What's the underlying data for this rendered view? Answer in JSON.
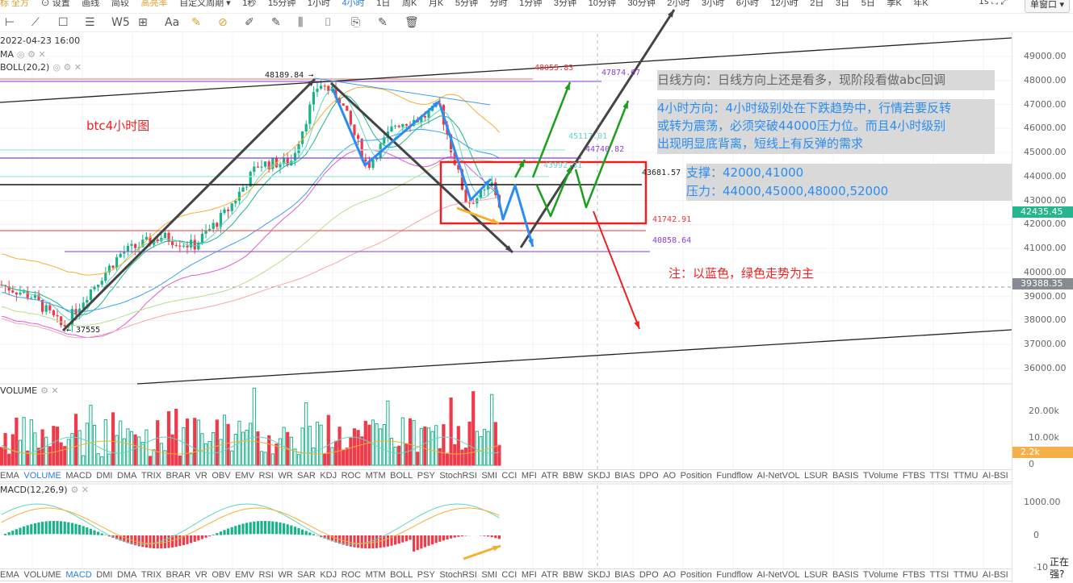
{
  "toolbar": {
    "items": [
      "标 全方",
      "⊙ 设置",
      "画线",
      "简较",
      "高亮率",
      "自定义周期 ▾",
      "1秒",
      "15分钟",
      "1小时",
      "4小时",
      "1日",
      "周K",
      "月K",
      "5分钟",
      "分时",
      "1分钟",
      "3分钟",
      "10分钟",
      "30分钟",
      "2小时",
      "3小时",
      "6小时",
      "12小时",
      "2日",
      "3日",
      "5日",
      "季K",
      "年K"
    ],
    "active": "4小时",
    "right_icons": "1s ⛶ ⤢",
    "window_select": "单窗口 ▾"
  },
  "drawing_tools": [
    "⊢",
    "⟋",
    "☐",
    "☰",
    "W5",
    "⊞",
    "Aa",
    "✎",
    "⊘",
    "✐",
    "✎",
    "⫼",
    "⌷",
    "⎘",
    "✎",
    "🗑"
  ],
  "legend": {
    "date": "2022-04-23 16:00",
    "ma": "MA",
    "boll": "BOLL(20,2)",
    "volume": "VOLUME",
    "macd": "MACD(12,26,9)"
  },
  "price_axis": {
    "ticks": [
      "49000.00",
      "48000.00",
      "47000.00",
      "46000.00",
      "45000.00",
      "44000.00",
      "43000.00",
      "42000.00",
      "41000.00",
      "40000.00",
      "39000.00",
      "38000.00",
      "37000.00",
      "36000.00"
    ],
    "current": "42435.45",
    "crosshair": "39388.35",
    "current_color": "#26b68f"
  },
  "volume_axis": {
    "ticks": [
      "20.00k",
      "10.00k",
      "0"
    ],
    "current": "2.2k"
  },
  "macd_axis": {
    "ticks": [
      "1000.00",
      "0",
      "-10"
    ]
  },
  "price_labels": {
    "high": "48189.84 →",
    "low": "← 37555",
    "l48055": "48055.83",
    "l47874": "47874.67",
    "l45117": "45117.01",
    "l44740": "44740.82",
    "l43992": "43992.31",
    "l43681": "43681.57",
    "l41742": "41742.91",
    "l40858": "40858.64"
  },
  "annotations": {
    "title": "btc4小时图",
    "daily": "日线方向：日线方向上还是看多，现阶段看做abc回调",
    "h4": [
      "4小时方向：4小时级别处在下跌趋势中，行情若要反转",
      "或转为震荡，必须突破44000压力位。而且4小时级别",
      "出现明显底背离，短线上有反弹的需求"
    ],
    "support": "支撑：42000,41000",
    "resistance": "压力：44000,45000,48000,52000",
    "note": "注：以蓝色，绿色走势为主"
  },
  "indicator_tabs": [
    "EMA",
    "VOLUME",
    "MACD",
    "DMI",
    "DMA",
    "TRIX",
    "BRAR",
    "VR",
    "OBV",
    "EMV",
    "RSI",
    "WR",
    "SAR",
    "KDJ",
    "ROC",
    "MTM",
    "BOLL",
    "PSY",
    "StochRSI",
    "SMI",
    "CCI",
    "MFI",
    "ATR",
    "BBW",
    "SKDJ",
    "BIAS",
    "DPO",
    "AO",
    "Position",
    "Fundflow",
    "AI-NetVOL",
    "LSUR",
    "BASIS",
    "TVolume",
    "FTBS",
    "TTSI",
    "TTMU",
    "AI-BSI"
  ],
  "tabs_active": {
    "volume_pane": "VOLUME",
    "macd_pane": "MACD"
  },
  "popup_text": [
    "正在",
    "强?"
  ]
}
